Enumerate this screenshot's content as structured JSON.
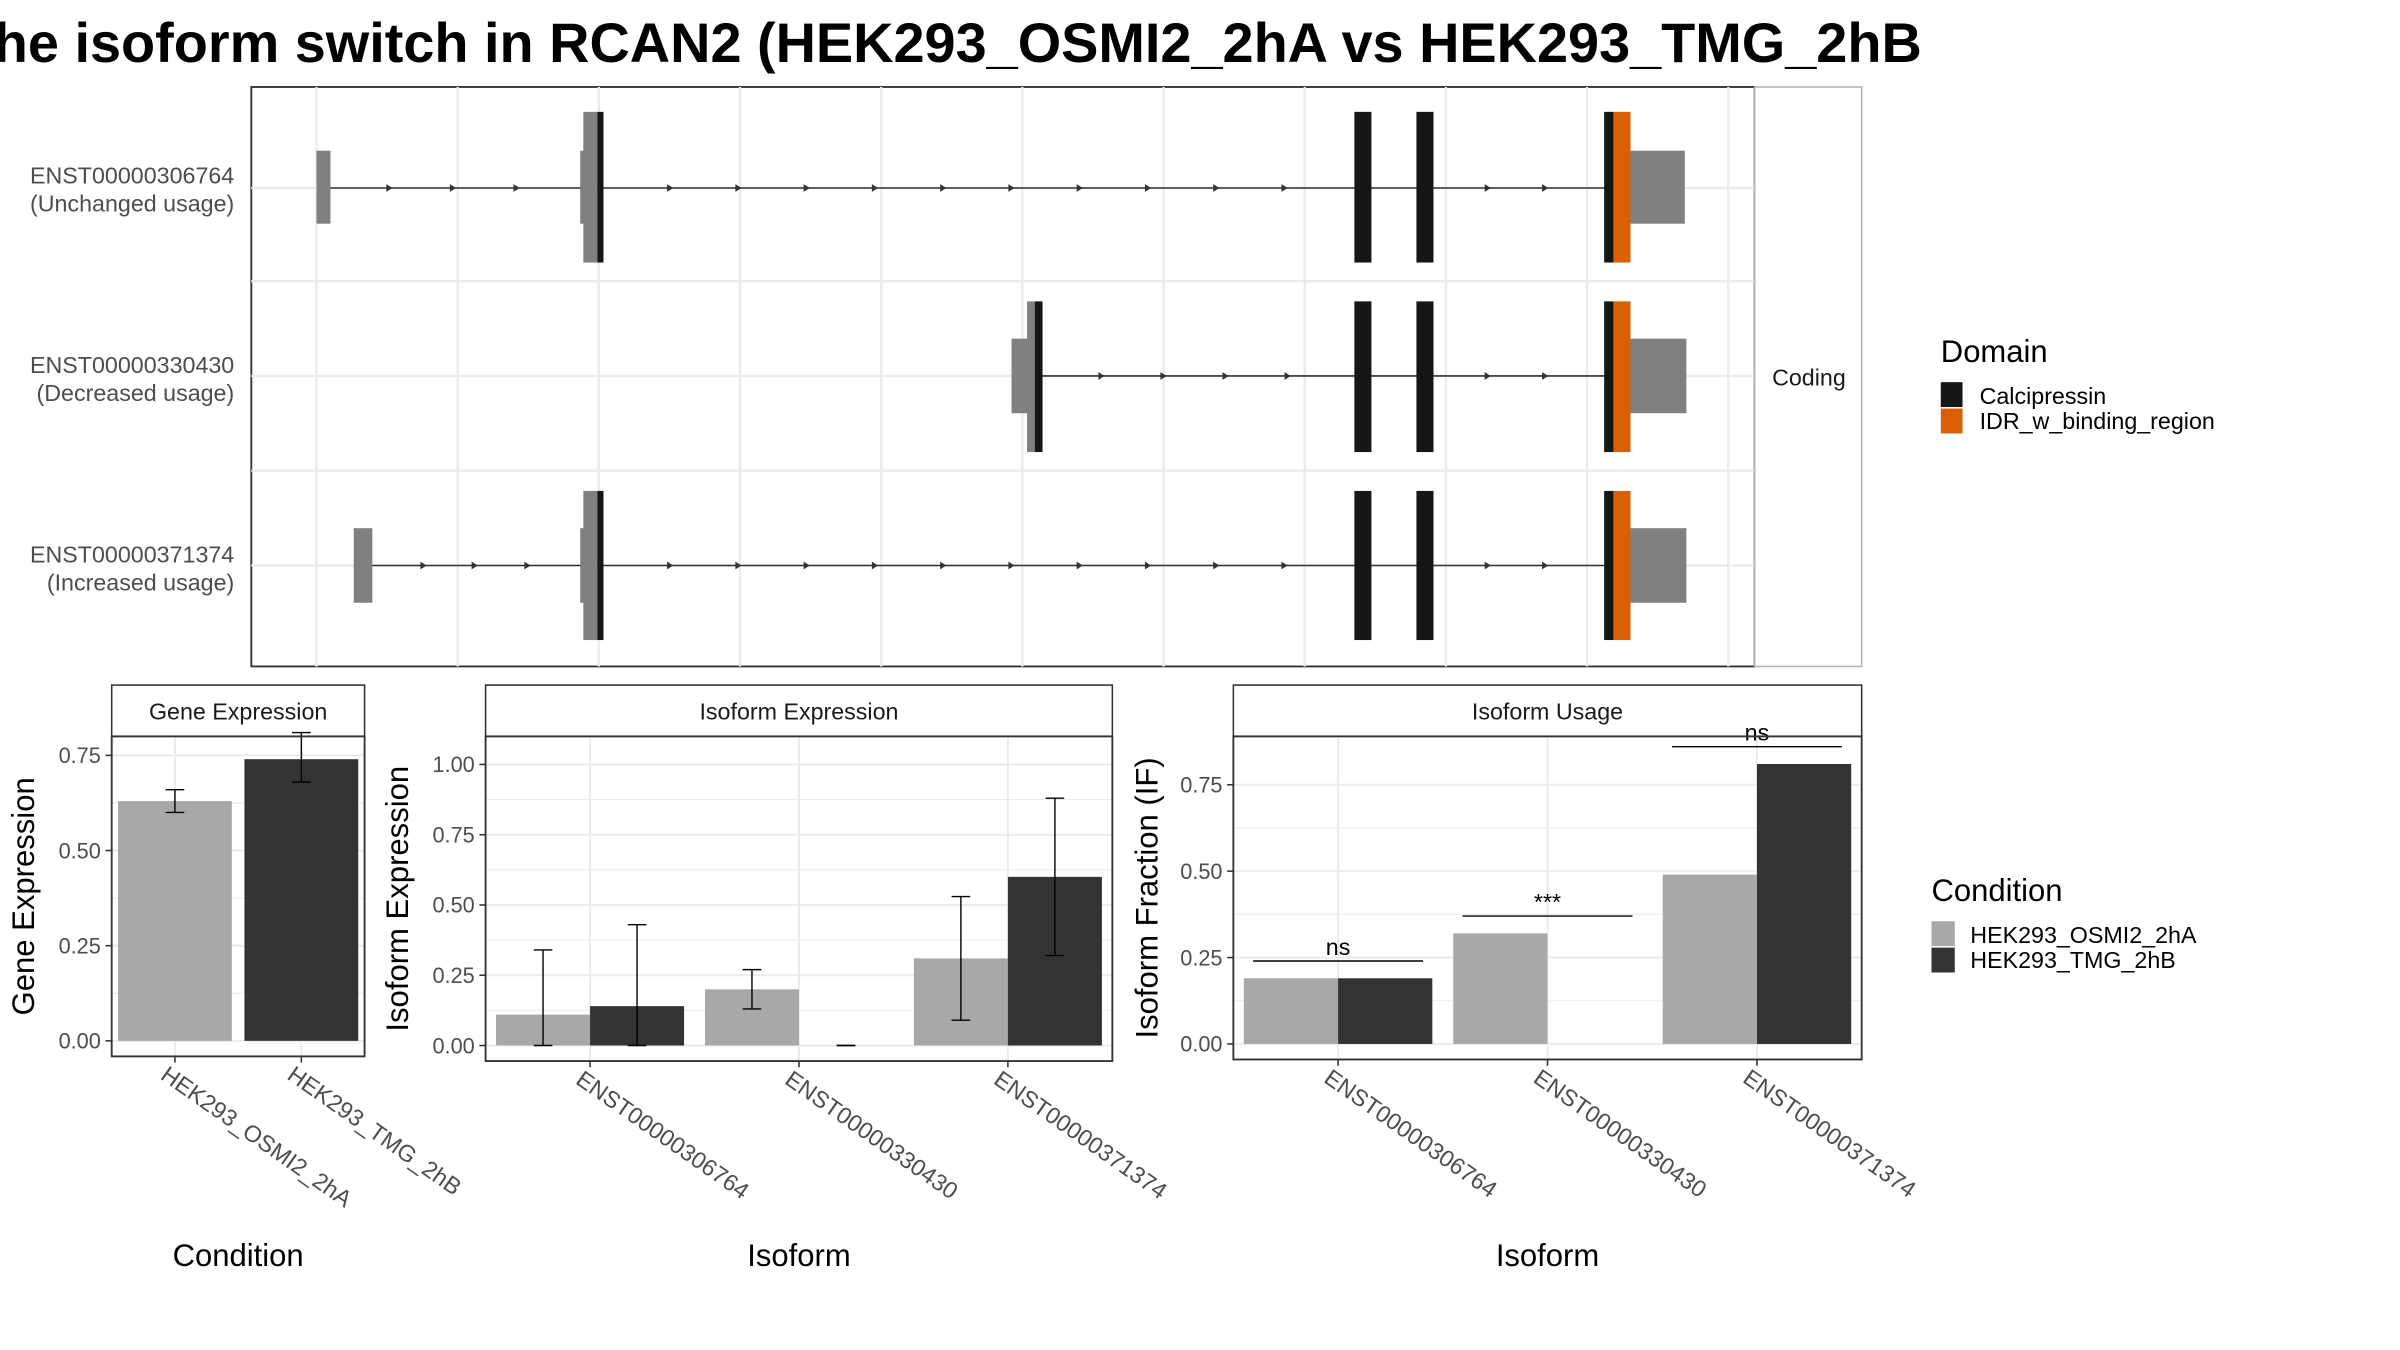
{
  "title": "he isoform switch in RCAN2 (HEK293_OSMI2_2hA vs HEK293_TMG_2hB",
  "isoform_plot": {
    "transcripts": [
      {
        "id": "ENST00000306764",
        "usage": "(Unchanged usage)"
      },
      {
        "id": "ENST00000330430",
        "usage": "(Decreased usage)"
      },
      {
        "id": "ENST00000371374",
        "usage": "(Increased usage)"
      }
    ],
    "facet_label": "Coding",
    "legend": {
      "title": "Domain",
      "items": [
        {
          "label": "Calcipressin",
          "color": "#161616"
        },
        {
          "label": "IDR_w_binding_region",
          "color": "#d95f02"
        }
      ]
    }
  },
  "condition_legend": {
    "title": "Condition",
    "items": [
      {
        "label": "HEK293_OSMI2_2hA",
        "color": "#a8a8a8"
      },
      {
        "label": "HEK293_TMG_2hB",
        "color": "#333333"
      }
    ]
  },
  "chart_data": [
    {
      "type": "bar",
      "title": "Gene Expression",
      "xlabel": "Condition",
      "ylabel": "Gene Expression",
      "ylim": [
        0,
        0.8
      ],
      "yticks": [
        "0.00",
        "0.25",
        "0.50",
        "0.75"
      ],
      "categories": [
        "HEK293_OSMI2_2hA",
        "HEK293_TMG_2hB"
      ],
      "values": [
        0.63,
        0.74
      ],
      "errors": [
        [
          0.6,
          0.66
        ],
        [
          0.68,
          0.81
        ]
      ]
    },
    {
      "type": "bar",
      "title": "Isoform Expression",
      "xlabel": "Isoform",
      "ylabel": "Isoform Expression",
      "ylim": [
        0,
        1.1
      ],
      "yticks": [
        "0.00",
        "0.25",
        "0.50",
        "0.75",
        "1.00"
      ],
      "categories": [
        "ENST00000306764",
        "ENST00000330430",
        "ENST00000371374"
      ],
      "series": [
        {
          "name": "HEK293_OSMI2_2hA",
          "values": [
            0.11,
            0.2,
            0.31
          ],
          "errors": [
            [
              0,
              0.34
            ],
            [
              0.13,
              0.27
            ],
            [
              0.09,
              0.53
            ]
          ]
        },
        {
          "name": "HEK293_TMG_2hB",
          "values": [
            0.14,
            0.0,
            0.6
          ],
          "errors": [
            [
              0,
              0.43
            ],
            [
              0,
              0
            ],
            [
              0.32,
              0.88
            ]
          ]
        }
      ]
    },
    {
      "type": "bar",
      "title": "Isoform Usage",
      "xlabel": "Isoform",
      "ylabel": "Isoform Fraction (IF)",
      "ylim": [
        0,
        0.89
      ],
      "yticks": [
        "0.00",
        "0.25",
        "0.50",
        "0.75"
      ],
      "categories": [
        "ENST00000306764",
        "ENST00000330430",
        "ENST00000371374"
      ],
      "series": [
        {
          "name": "HEK293_OSMI2_2hA",
          "values": [
            0.19,
            0.32,
            0.49
          ]
        },
        {
          "name": "HEK293_TMG_2hB",
          "values": [
            0.19,
            0.0,
            0.81
          ]
        }
      ],
      "significance": [
        "ns",
        "***",
        "ns"
      ]
    }
  ]
}
